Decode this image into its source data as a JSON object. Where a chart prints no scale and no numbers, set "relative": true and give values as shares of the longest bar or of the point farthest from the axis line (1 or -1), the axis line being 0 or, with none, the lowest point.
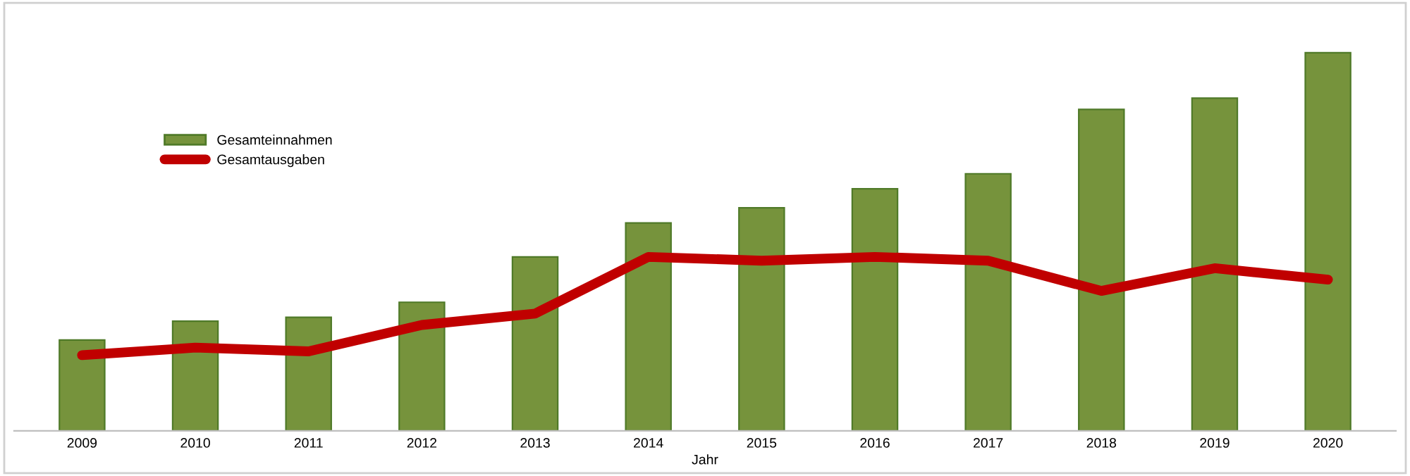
{
  "chart_data": {
    "type": "bar",
    "xlabel": "Jahr",
    "relative": true,
    "grid": false,
    "legend": "top left",
    "categories": [
      "2009",
      "2010",
      "2011",
      "2012",
      "2013",
      "2014",
      "2015",
      "2016",
      "2017",
      "2018",
      "2019",
      "2020"
    ],
    "series": [
      {
        "name": "Gesamteinnahmen",
        "color": "#76933c",
        "values": [
          0.24,
          0.29,
          0.3,
          0.34,
          0.46,
          0.55,
          0.59,
          0.64,
          0.68,
          0.85,
          0.88,
          1
        ]
      },
      {
        "name": "Gesamtausgaben",
        "type": "line",
        "color": "#c00000",
        "marker": "none",
        "line_style": "solid",
        "values": [
          0.2,
          0.22,
          0.21,
          0.28,
          0.31,
          0.46,
          0.45,
          0.46,
          0.45,
          0.37,
          0.43,
          0.4
        ]
      }
    ]
  }
}
